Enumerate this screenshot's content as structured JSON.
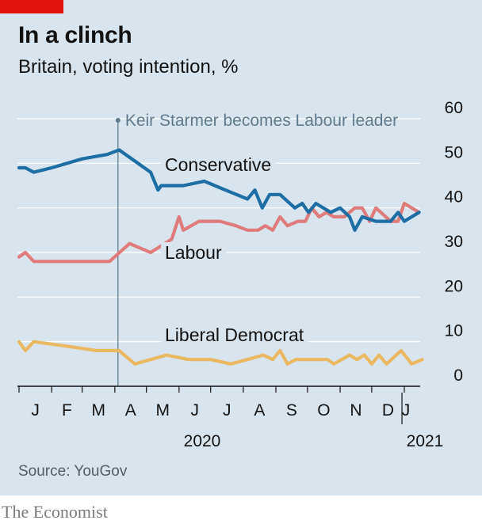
{
  "header": {
    "title": "In a clinch",
    "subtitle": "Britain, voting intention, %"
  },
  "footer": {
    "source": "Source: YouGov",
    "brand": "The Economist"
  },
  "colors": {
    "background": "#d9e5ee",
    "gridline": "#ffffff",
    "conservative": "#1d6ea4",
    "labour": "#e07b7b",
    "liberal_democrat": "#ebb862",
    "annotation": "#5f7a8c",
    "accent_tag": "#e3120b"
  },
  "chart_data": {
    "type": "line",
    "title": "In a clinch",
    "subtitle": "Britain, voting intention, %",
    "ylim": [
      0,
      60
    ],
    "yticks": [
      "0",
      "10",
      "20",
      "30",
      "40",
      "50",
      "60"
    ],
    "y_axis_side": "right",
    "grid": true,
    "x_axis": {
      "start": "2020-01-01",
      "end": "2021-01-07",
      "month_labels": [
        "J",
        "F",
        "M",
        "A",
        "M",
        "J",
        "J",
        "A",
        "S",
        "O",
        "N",
        "D",
        "J"
      ],
      "year_labels": [
        "2020",
        "2021"
      ]
    },
    "annotation": {
      "text": "Keir Starmer becomes Labour leader",
      "date": "2020-04-04"
    },
    "series": [
      {
        "name": "Conservative",
        "color": "#1d6ea4",
        "points": [
          [
            "2020-01-01",
            49
          ],
          [
            "2020-01-07",
            49
          ],
          [
            "2020-01-15",
            48
          ],
          [
            "2020-02-01",
            49
          ],
          [
            "2020-03-01",
            51
          ],
          [
            "2020-03-25",
            52
          ],
          [
            "2020-04-05",
            53
          ],
          [
            "2020-05-05",
            48
          ],
          [
            "2020-05-12",
            44
          ],
          [
            "2020-05-15",
            45
          ],
          [
            "2020-06-05",
            45
          ],
          [
            "2020-06-25",
            46
          ],
          [
            "2020-07-15",
            44
          ],
          [
            "2020-08-05",
            42
          ],
          [
            "2020-08-12",
            44
          ],
          [
            "2020-08-19",
            40
          ],
          [
            "2020-08-26",
            43
          ],
          [
            "2020-09-05",
            43
          ],
          [
            "2020-09-19",
            40
          ],
          [
            "2020-09-26",
            41
          ],
          [
            "2020-10-02",
            39
          ],
          [
            "2020-10-09",
            41
          ],
          [
            "2020-10-23",
            39
          ],
          [
            "2020-11-01",
            40
          ],
          [
            "2020-11-10",
            38
          ],
          [
            "2020-11-15",
            35
          ],
          [
            "2020-11-22",
            38
          ],
          [
            "2020-12-05",
            37
          ],
          [
            "2020-12-19",
            37
          ],
          [
            "2020-12-26",
            39
          ],
          [
            "2021-01-01",
            37
          ],
          [
            "2021-01-15",
            39
          ]
        ]
      },
      {
        "name": "Labour",
        "color": "#e07b7b",
        "points": [
          [
            "2020-01-01",
            29
          ],
          [
            "2020-01-07",
            30
          ],
          [
            "2020-01-15",
            28
          ],
          [
            "2020-02-01",
            28
          ],
          [
            "2020-03-01",
            28
          ],
          [
            "2020-03-20",
            28
          ],
          [
            "2020-03-27",
            28
          ],
          [
            "2020-04-15",
            32
          ],
          [
            "2020-05-05",
            30
          ],
          [
            "2020-05-25",
            33
          ],
          [
            "2020-06-01",
            38
          ],
          [
            "2020-06-05",
            35
          ],
          [
            "2020-06-20",
            37
          ],
          [
            "2020-07-10",
            37
          ],
          [
            "2020-07-25",
            36
          ],
          [
            "2020-08-05",
            35
          ],
          [
            "2020-08-15",
            35
          ],
          [
            "2020-08-22",
            36
          ],
          [
            "2020-08-29",
            35
          ],
          [
            "2020-09-05",
            38
          ],
          [
            "2020-09-12",
            36
          ],
          [
            "2020-09-22",
            37
          ],
          [
            "2020-09-29",
            37
          ],
          [
            "2020-10-05",
            40
          ],
          [
            "2020-10-12",
            38
          ],
          [
            "2020-10-19",
            39
          ],
          [
            "2020-10-26",
            38
          ],
          [
            "2020-11-05",
            38
          ],
          [
            "2020-11-15",
            40
          ],
          [
            "2020-11-22",
            40
          ],
          [
            "2020-11-29",
            37
          ],
          [
            "2020-12-05",
            40
          ],
          [
            "2020-12-19",
            37
          ],
          [
            "2020-12-26",
            37
          ],
          [
            "2021-01-01",
            41
          ],
          [
            "2021-01-15",
            39
          ]
        ]
      },
      {
        "name": "Liberal Democrat",
        "color": "#ebb862",
        "points": [
          [
            "2020-01-01",
            10
          ],
          [
            "2020-01-07",
            8
          ],
          [
            "2020-01-15",
            10
          ],
          [
            "2020-02-15",
            9
          ],
          [
            "2020-03-15",
            8
          ],
          [
            "2020-04-05",
            8
          ],
          [
            "2020-04-20",
            5
          ],
          [
            "2020-05-20",
            7
          ],
          [
            "2020-06-10",
            6
          ],
          [
            "2020-07-01",
            6
          ],
          [
            "2020-07-20",
            5
          ],
          [
            "2020-08-05",
            6
          ],
          [
            "2020-08-20",
            7
          ],
          [
            "2020-08-29",
            6
          ],
          [
            "2020-09-05",
            8
          ],
          [
            "2020-09-12",
            5
          ],
          [
            "2020-09-20",
            6
          ],
          [
            "2020-10-20",
            6
          ],
          [
            "2020-10-26",
            5
          ],
          [
            "2020-11-10",
            7
          ],
          [
            "2020-11-17",
            6
          ],
          [
            "2020-11-24",
            7
          ],
          [
            "2020-12-01",
            5
          ],
          [
            "2020-12-08",
            7
          ],
          [
            "2020-12-15",
            5
          ],
          [
            "2020-12-29",
            8
          ],
          [
            "2021-01-08",
            5
          ],
          [
            "2021-01-18",
            6
          ]
        ]
      }
    ]
  }
}
